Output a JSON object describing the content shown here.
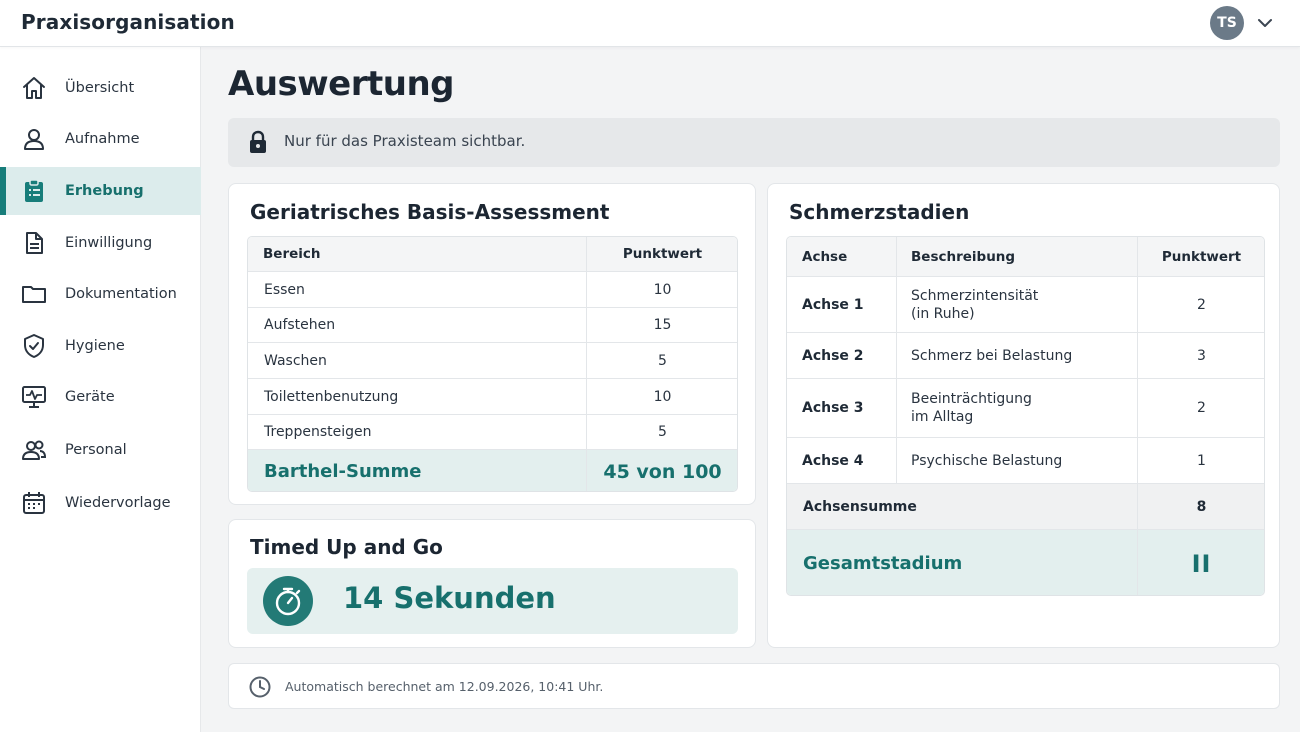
{
  "app": {
    "title": "Praxisorganisation",
    "user_initials": "TS"
  },
  "sidebar": {
    "items": [
      {
        "label": "Übersicht",
        "icon": "home-icon",
        "active": false
      },
      {
        "label": "Aufnahme",
        "icon": "user-icon",
        "active": false
      },
      {
        "label": "Erhebung",
        "icon": "clipboard-icon",
        "active": true
      },
      {
        "label": "Einwilligung",
        "icon": "document-icon",
        "active": false
      },
      {
        "label": "Dokumentation",
        "icon": "folder-icon",
        "active": false
      },
      {
        "label": "Hygiene",
        "icon": "shield-icon",
        "active": false
      },
      {
        "label": "Geräte",
        "icon": "monitor-icon",
        "active": false
      },
      {
        "label": "Personal",
        "icon": "people-icon",
        "active": false
      },
      {
        "label": "Wiedervorlage",
        "icon": "calendar-icon",
        "active": false
      }
    ]
  },
  "page": {
    "title": "Auswertung",
    "notice": "Nur für das Praxisteam sichtbar."
  },
  "barthel": {
    "title": "Geriatrisches Basis-Assessment",
    "headers": [
      "Bereich",
      "Punktwert"
    ],
    "rows": [
      {
        "area": "Essen",
        "score": "10"
      },
      {
        "area": "Aufstehen",
        "score": "15"
      },
      {
        "area": "Waschen",
        "score": "5"
      },
      {
        "area": "Toilettenbenutzung",
        "score": "10"
      },
      {
        "area": "Treppensteigen",
        "score": "5"
      }
    ],
    "sum_label": "Barthel-Summe",
    "sum_value": "45 von 100"
  },
  "tug": {
    "title": "Timed Up and Go",
    "value": "14 Sekunden"
  },
  "pain": {
    "title": "Schmerzstadien",
    "headers": [
      "Achse",
      "Beschreibung",
      "Punktwert"
    ],
    "rows": [
      {
        "axis": "Achse 1",
        "desc_line1": "Schmerzintensität",
        "desc_line2": "(in Ruhe)",
        "score": "2"
      },
      {
        "axis": "Achse 2",
        "desc_line1": "Schmerz bei Belastung",
        "desc_line2": "",
        "score": "3"
      },
      {
        "axis": "Achse 3",
        "desc_line1": "Beeinträchtigung",
        "desc_line2": "im Alltag",
        "score": "2"
      },
      {
        "axis": "Achse 4",
        "desc_line1": "Psychische Belastung",
        "desc_line2": "",
        "score": "1"
      }
    ],
    "sum_label": "Achsensumme",
    "sum_value": "8",
    "stage_label": "Gesamtstadium",
    "stage_value": "II"
  },
  "footer": {
    "text": "Automatisch berechnet am 12.09.2026, 10:41 Uhr."
  },
  "colors": {
    "accent": "#177d7a",
    "accent_light": "#dcecec",
    "summary_bg": "#e5f0ef",
    "text_dark": "#1c2632"
  }
}
